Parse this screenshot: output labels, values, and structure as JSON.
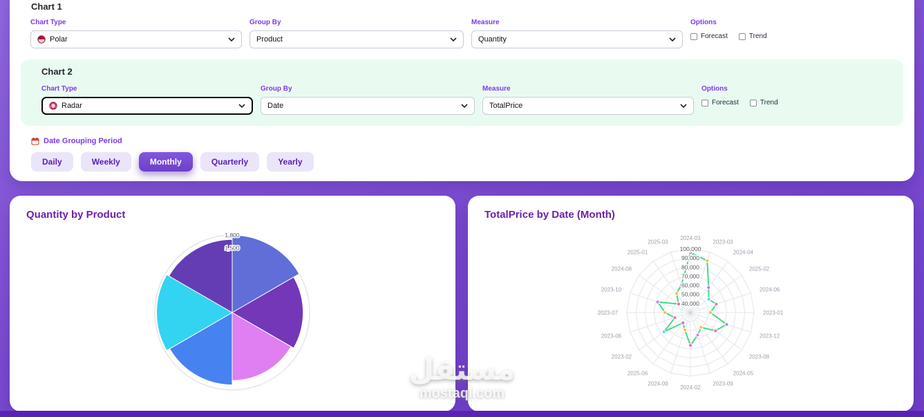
{
  "config_panel": {
    "chart1": {
      "heading": "Chart 1",
      "chart_type": {
        "label": "Chart Type",
        "value": "Polar"
      },
      "group_by": {
        "label": "Group By",
        "value": "Product"
      },
      "measure": {
        "label": "Measure",
        "value": "Quantity"
      },
      "options": {
        "label": "Options",
        "forecast": "Forecast",
        "trend": "Trend"
      }
    },
    "chart2": {
      "heading": "Chart 2",
      "chart_type": {
        "label": "Chart Type",
        "value": "Radar"
      },
      "group_by": {
        "label": "Group By",
        "value": "Date"
      },
      "measure": {
        "label": "Measure",
        "value": "TotalPrice"
      },
      "options": {
        "label": "Options",
        "forecast": "Forecast",
        "trend": "Trend"
      }
    },
    "date_grouping": {
      "label": "Date Grouping Period",
      "periods": [
        "Daily",
        "Weekly",
        "Monthly",
        "Quarterly",
        "Yearly"
      ],
      "active": "Monthly"
    }
  },
  "watermark": {
    "text": "مستقل",
    "domain": "mostaql.com"
  },
  "chart_data": [
    {
      "type": "polarArea",
      "title": "Quantity by Product",
      "group_by": "Product",
      "measure": "Quantity",
      "max": 1800,
      "ticks": [
        {
          "label": "1,800",
          "value": 1800
        },
        {
          "label": "1,500",
          "value": 1500
        }
      ],
      "values": [
        1800,
        1650,
        1580,
        1680,
        1760,
        1700
      ],
      "colors": [
        "#5b68d5",
        "#6d2fb5",
        "#de7af0",
        "#3f7df0",
        "#2bd2f0",
        "#5e35b1"
      ]
    },
    {
      "type": "radar",
      "title": "TotalPrice by Date (Month)",
      "group_by": "Date (Month)",
      "measure": "TotalPrice",
      "rmin": 30000,
      "rmax": 100000,
      "ticks": [
        {
          "label": "100,000",
          "value": 100000
        },
        {
          "label": "90,000",
          "value": 90000
        },
        {
          "label": "80,000",
          "value": 80000
        },
        {
          "label": "70,000",
          "value": 70000
        },
        {
          "label": "60,000",
          "value": 60000
        },
        {
          "label": "50,000",
          "value": 50000
        },
        {
          "label": "40,000",
          "value": 40000
        }
      ],
      "categories": [
        "2024-03",
        "2023-03",
        "2024-04",
        "2025-02",
        "2024-06",
        "2023-01",
        "2023-12",
        "2023-08",
        "2024-05",
        "2023-09",
        "2024-02",
        "2024-09",
        "2025-06",
        "2023-02",
        "2023-06",
        "2023-07",
        "2023-10",
        "2024-08",
        "2025-01",
        "2025-03"
      ],
      "values": [
        96000,
        90000,
        64000,
        55000,
        60000,
        52000,
        72000,
        64000,
        50000,
        56000,
        66000,
        50000,
        44000,
        66000,
        48000,
        58000,
        68000,
        46000,
        56000,
        62000
      ],
      "line_color": "#45d98a",
      "point_colors": [
        "#f06ab2",
        "#f5c33b",
        "#cf6af0",
        "#5bd6e8",
        "#f06ab2",
        "#f5c33b",
        "#a78bfa",
        "#f06ab2",
        "#f5c33b",
        "#e879f9"
      ]
    }
  ]
}
